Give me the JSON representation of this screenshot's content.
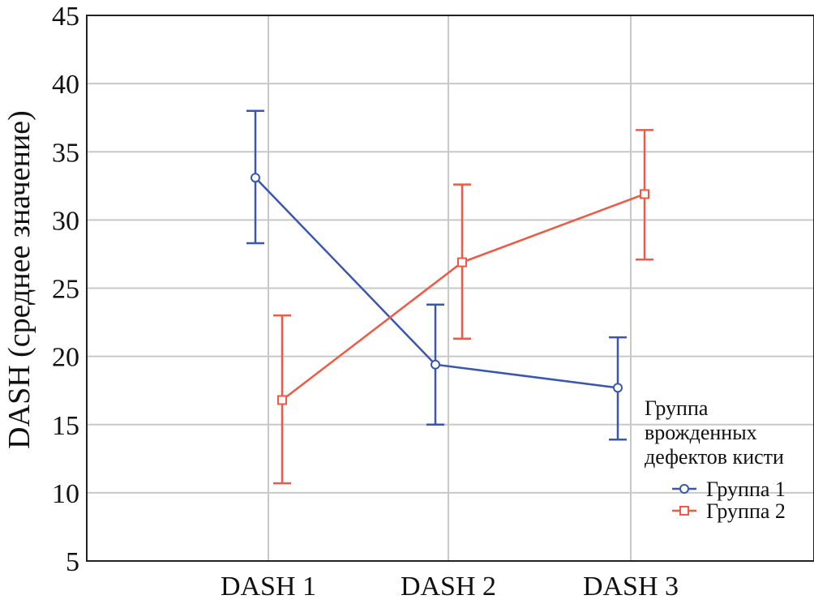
{
  "chart_data": {
    "type": "line",
    "title": "",
    "xlabel": "",
    "ylabel": "DASH (среднее значение)",
    "ylim": [
      5,
      45
    ],
    "yticks": [
      5,
      10,
      15,
      20,
      25,
      30,
      35,
      40,
      45
    ],
    "categories": [
      "DASH 1",
      "DASH 2",
      "DASH 3"
    ],
    "grid": true,
    "legend": {
      "title_lines": [
        "Группа",
        "врожденных",
        "дефектов кисти"
      ],
      "placement": "lower-right"
    },
    "series": [
      {
        "name": "Группа 1",
        "color": "#3a57ad",
        "marker": "circle",
        "values": [
          33.1,
          19.4,
          17.7
        ],
        "lower": [
          28.3,
          15.0,
          13.9
        ],
        "upper": [
          38.0,
          23.8,
          21.4
        ]
      },
      {
        "name": "Группа 2",
        "color": "#ee5a46",
        "marker": "square",
        "values": [
          16.8,
          26.9,
          31.9
        ],
        "lower": [
          10.7,
          21.3,
          27.1
        ],
        "upper": [
          23.0,
          32.6,
          36.6
        ]
      }
    ]
  }
}
